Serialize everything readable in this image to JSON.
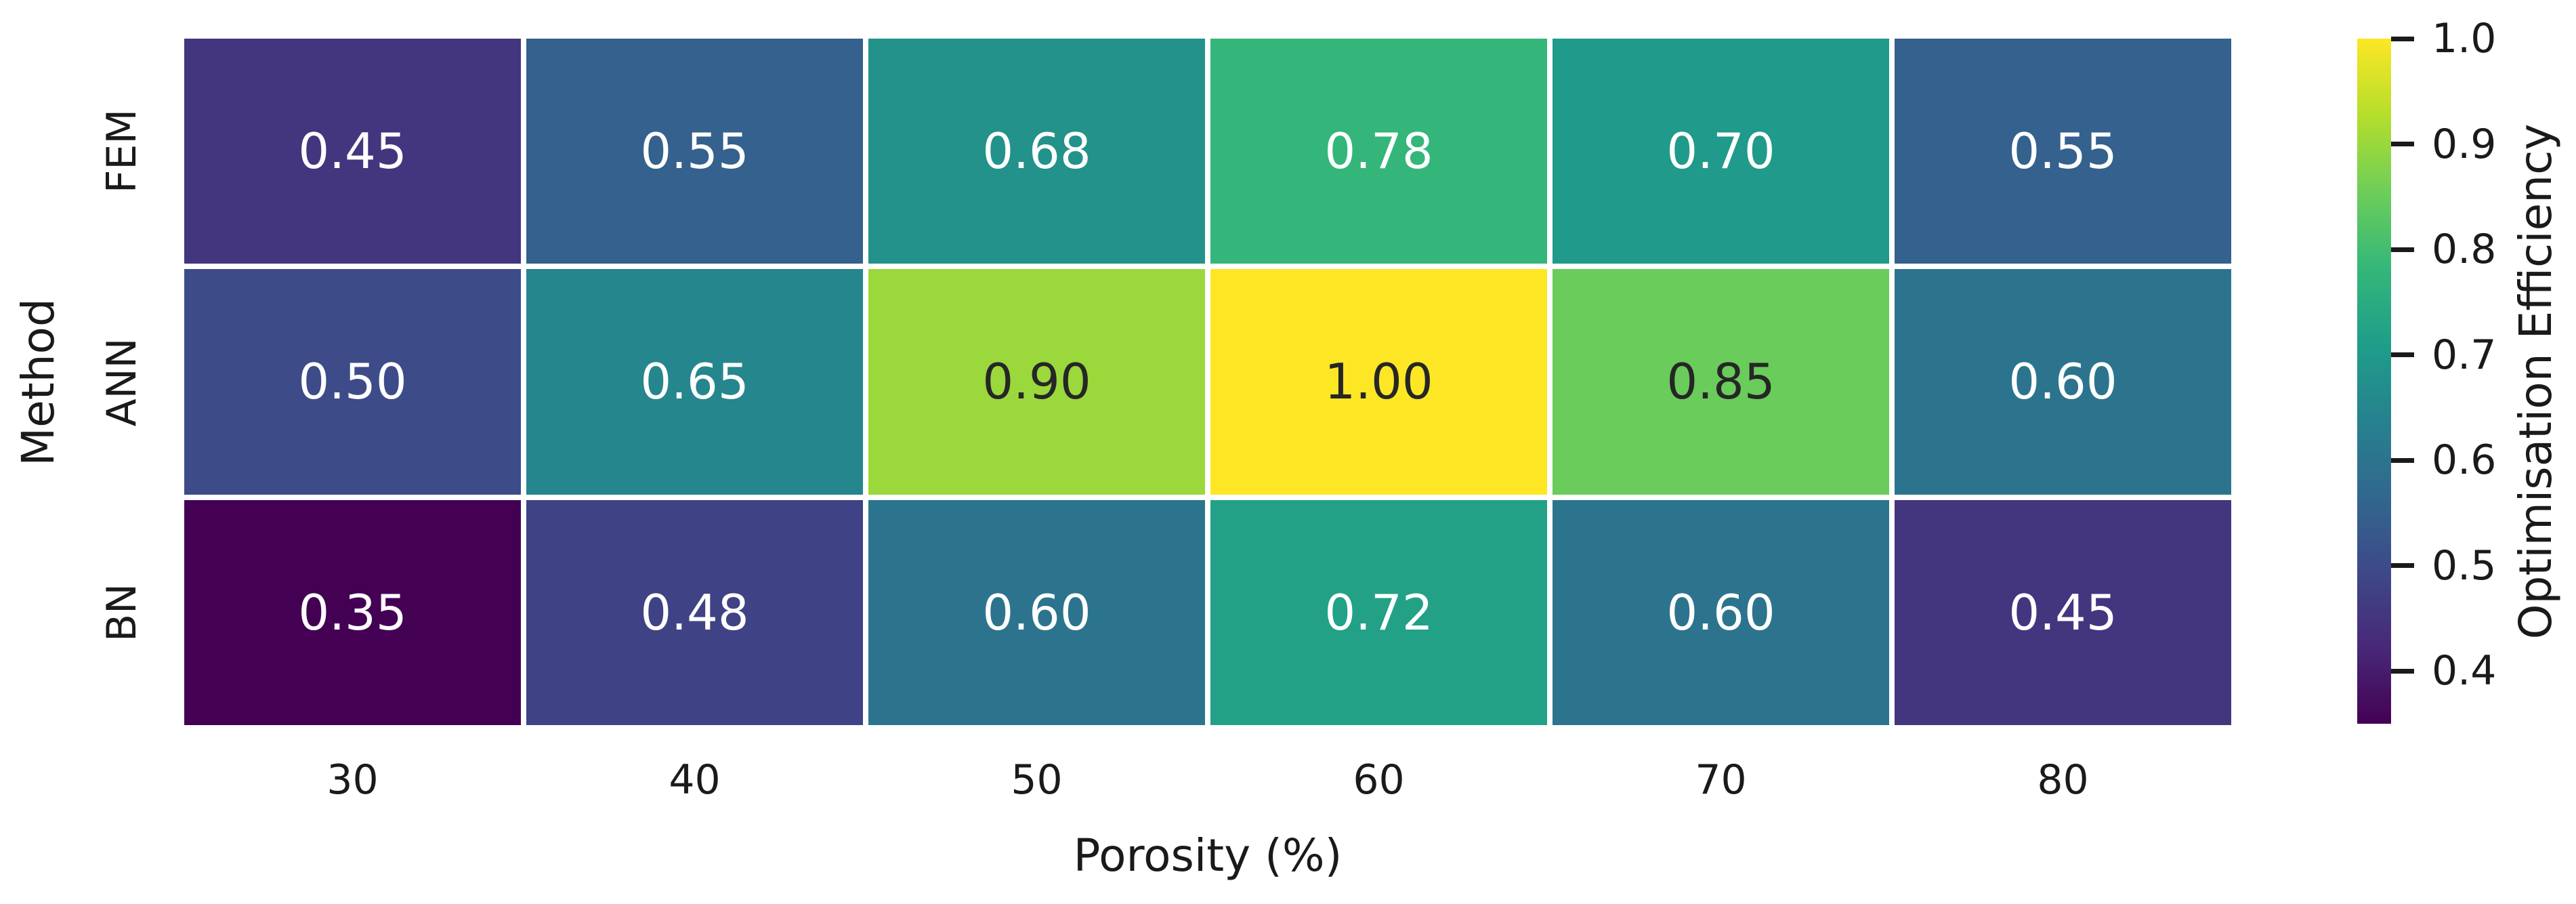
{
  "figure": {
    "background": "#ffffff",
    "text_color": "#1a1a1a"
  },
  "chart_data": {
    "type": "heatmap",
    "title": "",
    "xlabel": "Porosity (%)",
    "ylabel": "Method",
    "x_categories": [
      "30",
      "40",
      "50",
      "60",
      "70",
      "80"
    ],
    "y_categories": [
      "FEM",
      "ANN",
      "BN"
    ],
    "series": [
      {
        "name": "FEM",
        "values": [
          0.45,
          0.55,
          0.68,
          0.78,
          0.7,
          0.55
        ]
      },
      {
        "name": "ANN",
        "values": [
          0.5,
          0.65,
          0.9,
          1.0,
          0.85,
          0.6
        ]
      },
      {
        "name": "BN",
        "values": [
          0.35,
          0.48,
          0.6,
          0.72,
          0.6,
          0.45
        ]
      }
    ],
    "annotations_on": true,
    "value_decimals": 2,
    "vmin": 0.35,
    "vmax": 1.0,
    "colorbar": {
      "label": "Optimisation Efficiency",
      "tick_values": [
        1.0,
        0.9,
        0.8,
        0.7,
        0.6,
        0.5,
        0.4
      ],
      "tick_decimals": 1
    },
    "colormap": {
      "name": "viridis",
      "stops": [
        "#440154",
        "#482878",
        "#3e4989",
        "#31688e",
        "#26828e",
        "#1f9e89",
        "#35b779",
        "#6ece58",
        "#b5de2b",
        "#fde725"
      ]
    },
    "annotation_text_colors": {
      "light": "#ffffff",
      "dark": "#262626"
    },
    "grid_line_color": "#ffffff",
    "legend_position": "right-colorbar",
    "grid": false
  }
}
